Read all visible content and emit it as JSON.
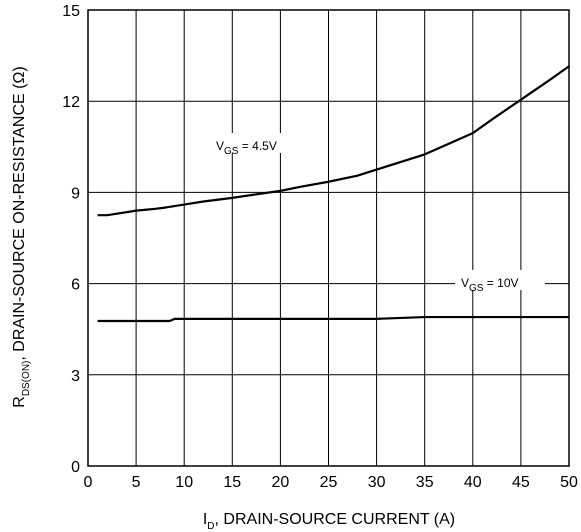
{
  "chart_data": {
    "type": "line",
    "xlabel": "I",
    "xlabel_sub": "D",
    "xlabel_rest": ", DRAIN-SOURCE CURRENT (A)",
    "ylabel": "R",
    "ylabel_sub": "DS(ON)",
    "ylabel_rest": ", DRAIN-SOURCE ON-RESISTANCE (Ω)",
    "xlim": [
      0,
      50
    ],
    "ylim": [
      0,
      15
    ],
    "x_ticks": [
      0,
      5,
      10,
      15,
      20,
      25,
      30,
      35,
      40,
      45,
      50
    ],
    "y_ticks": [
      0,
      3,
      6,
      9,
      12,
      15
    ],
    "grid": true,
    "series": [
      {
        "name": "V_GS = 4.5V",
        "label_main": "V",
        "label_sub": "GS",
        "label_rest": " = 4.5V",
        "x": [
          1,
          2,
          3,
          4,
          5,
          6,
          7,
          8,
          9,
          10,
          12,
          15,
          18,
          20,
          22,
          25,
          28,
          30,
          35,
          40,
          42,
          45,
          48,
          50
        ],
        "y": [
          8.25,
          8.25,
          8.3,
          8.35,
          8.4,
          8.43,
          8.46,
          8.5,
          8.55,
          8.6,
          8.7,
          8.82,
          8.96,
          9.05,
          9.18,
          9.35,
          9.55,
          9.75,
          10.25,
          10.95,
          11.4,
          12.05,
          12.7,
          13.15
        ]
      },
      {
        "name": "V_GS = 10V",
        "label_main": "V",
        "label_sub": "GS",
        "label_rest": " = 10V",
        "x": [
          1,
          5,
          8.5,
          9,
          15,
          20,
          25,
          30,
          35,
          40,
          45,
          50
        ],
        "y": [
          4.77,
          4.77,
          4.77,
          4.84,
          4.84,
          4.84,
          4.84,
          4.84,
          4.9,
          4.9,
          4.9,
          4.9
        ]
      }
    ]
  }
}
